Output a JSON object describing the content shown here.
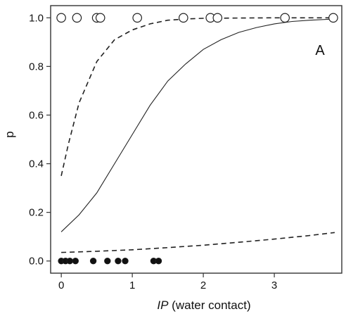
{
  "chart_data": {
    "type": "scatter",
    "panel_label": "A",
    "title": "",
    "xlabel_italic": "IP",
    "xlabel_rest": " (water contact)",
    "ylabel": "p",
    "xlim": [
      -0.15,
      3.95
    ],
    "ylim": [
      -0.05,
      1.05
    ],
    "x_ticks": [
      0,
      1,
      2,
      3
    ],
    "x_tick_labels": [
      "0",
      "1",
      "2",
      "3"
    ],
    "y_ticks": [
      0.0,
      0.2,
      0.4,
      0.6,
      0.8,
      1.0
    ],
    "y_tick_labels": [
      "0.0",
      "0.2",
      "0.4",
      "0.6",
      "0.8",
      "1.0"
    ],
    "grid": false,
    "series": [
      {
        "kind": "points",
        "marker": "open-circle",
        "x": [
          0.0,
          0.22,
          0.5,
          0.55,
          1.07,
          1.72,
          2.1,
          2.2,
          3.15,
          3.83
        ],
        "y": [
          1,
          1,
          1,
          1,
          1,
          1,
          1,
          1,
          1,
          1
        ]
      },
      {
        "kind": "points",
        "marker": "filled-circle",
        "x": [
          0.0,
          0.06,
          0.12,
          0.2,
          0.45,
          0.65,
          0.8,
          0.9,
          1.3,
          1.37
        ],
        "y": [
          0,
          0,
          0,
          0,
          0,
          0,
          0,
          0,
          0,
          0
        ]
      },
      {
        "kind": "line",
        "style": "solid",
        "x": [
          0.0,
          0.25,
          0.5,
          0.75,
          1.0,
          1.25,
          1.5,
          1.75,
          2.0,
          2.25,
          2.5,
          2.75,
          3.0,
          3.25,
          3.5,
          3.85
        ],
        "y": [
          0.12,
          0.19,
          0.28,
          0.4,
          0.52,
          0.64,
          0.74,
          0.81,
          0.87,
          0.91,
          0.94,
          0.96,
          0.975,
          0.985,
          0.99,
          0.995
        ]
      },
      {
        "kind": "line",
        "style": "dashed",
        "x": [
          0.0,
          0.1,
          0.25,
          0.5,
          0.75,
          1.0,
          1.25,
          1.5,
          1.75,
          2.0,
          2.5,
          3.0,
          3.5,
          3.85
        ],
        "y": [
          0.35,
          0.48,
          0.65,
          0.82,
          0.91,
          0.95,
          0.975,
          0.99,
          0.995,
          0.998,
          0.999,
          1.0,
          1.0,
          1.0
        ]
      },
      {
        "kind": "line",
        "style": "dashed",
        "x": [
          0.0,
          0.5,
          1.0,
          1.5,
          2.0,
          2.5,
          3.0,
          3.5,
          3.85
        ],
        "y": [
          0.035,
          0.04,
          0.046,
          0.055,
          0.065,
          0.077,
          0.09,
          0.105,
          0.117
        ]
      }
    ]
  }
}
